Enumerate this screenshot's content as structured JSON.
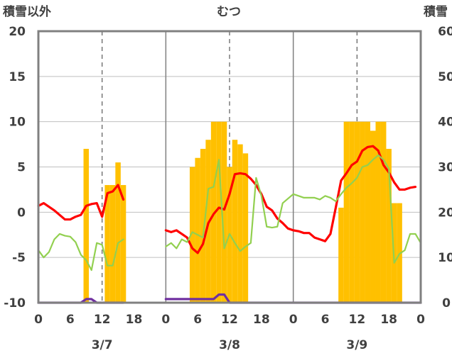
{
  "chart_data": {
    "type": "bar",
    "title": "むつ",
    "left_axis_label": "積雪以外",
    "right_axis_label": "積雪",
    "left_ylim": [
      -10,
      20
    ],
    "right_ylim": [
      0,
      60
    ],
    "left_ticks": [
      "20",
      "15",
      "10",
      "5",
      "0",
      "-5",
      "-10"
    ],
    "right_ticks": [
      "60",
      "50",
      "40",
      "30",
      "20",
      "10",
      "0"
    ],
    "x_ticks": [
      "0",
      "6",
      "12",
      "18",
      "0",
      "6",
      "12",
      "18",
      "0",
      "6",
      "12",
      "18",
      "0"
    ],
    "dates": [
      "3/7",
      "3/8",
      "3/9"
    ],
    "grid": true,
    "x_hours_total": 72,
    "snow_bars": [
      {
        "hour": 9,
        "value": 34
      },
      {
        "hour": 13,
        "value": 26
      },
      {
        "hour": 14,
        "value": 26
      },
      {
        "hour": 15,
        "value": 31
      },
      {
        "hour": 16,
        "value": 26
      },
      {
        "hour": 29,
        "value": 30
      },
      {
        "hour": 30,
        "value": 32
      },
      {
        "hour": 31,
        "value": 34
      },
      {
        "hour": 32,
        "value": 36
      },
      {
        "hour": 33,
        "value": 40
      },
      {
        "hour": 34,
        "value": 40
      },
      {
        "hour": 35,
        "value": 40
      },
      {
        "hour": 36,
        "value": 30
      },
      {
        "hour": 37,
        "value": 36
      },
      {
        "hour": 38,
        "value": 35
      },
      {
        "hour": 39,
        "value": 33
      },
      {
        "hour": 57,
        "value": 21
      },
      {
        "hour": 58,
        "value": 40
      },
      {
        "hour": 59,
        "value": 40
      },
      {
        "hour": 60,
        "value": 40
      },
      {
        "hour": 61,
        "value": 40
      },
      {
        "hour": 62,
        "value": 40
      },
      {
        "hour": 63,
        "value": 38
      },
      {
        "hour": 64,
        "value": 40
      },
      {
        "hour": 65,
        "value": 40
      },
      {
        "hour": 66,
        "value": 34
      },
      {
        "hour": 67,
        "value": 22
      },
      {
        "hour": 68,
        "value": 22
      }
    ],
    "series": [
      {
        "color": "#ff0000",
        "segments": [
          [
            [
              0,
              0.7
            ],
            [
              1,
              1.0
            ],
            [
              2,
              0.6
            ],
            [
              3,
              0.2
            ],
            [
              4,
              -0.3
            ],
            [
              5,
              -0.8
            ],
            [
              6,
              -0.8
            ],
            [
              7,
              -0.5
            ],
            [
              8,
              -0.3
            ],
            [
              9,
              0.7
            ],
            [
              10,
              0.9
            ],
            [
              11,
              1.0
            ],
            [
              12,
              -0.5
            ],
            [
              13,
              2.1
            ],
            [
              14,
              2.3
            ],
            [
              15,
              3.0
            ],
            [
              16,
              1.4
            ]
          ],
          [
            [
              24,
              -2.0
            ],
            [
              25,
              -2.2
            ],
            [
              26,
              -2.0
            ],
            [
              27,
              -2.4
            ],
            [
              28,
              -2.8
            ],
            [
              29,
              -4.0
            ],
            [
              30,
              -4.5
            ],
            [
              31,
              -3.5
            ],
            [
              32,
              -1.2
            ],
            [
              33,
              -0.2
            ],
            [
              34,
              0.5
            ],
            [
              35,
              0.3
            ],
            [
              36,
              2.0
            ],
            [
              37,
              4.2
            ],
            [
              38,
              4.3
            ],
            [
              39,
              4.2
            ],
            [
              40,
              3.7
            ],
            [
              41,
              3.0
            ],
            [
              42,
              2.0
            ],
            [
              43,
              0.6
            ],
            [
              44,
              0.2
            ],
            [
              45,
              -0.7
            ],
            [
              46,
              -1.2
            ],
            [
              47,
              -1.8
            ],
            [
              48,
              -2.0
            ],
            [
              49,
              -2.1
            ],
            [
              50,
              -2.3
            ],
            [
              51,
              -2.3
            ],
            [
              52,
              -2.8
            ],
            [
              53,
              -3.0
            ],
            [
              54,
              -3.2
            ],
            [
              55,
              -2.4
            ],
            [
              56,
              0.5
            ],
            [
              57,
              3.5
            ],
            [
              58,
              4.3
            ],
            [
              59,
              5.2
            ],
            [
              60,
              5.6
            ],
            [
              61,
              6.8
            ],
            [
              62,
              7.2
            ],
            [
              63,
              7.3
            ],
            [
              64,
              6.8
            ],
            [
              65,
              5.2
            ],
            [
              66,
              4.4
            ],
            [
              67,
              3.3
            ],
            [
              68,
              2.5
            ],
            [
              69,
              2.5
            ],
            [
              70,
              2.7
            ],
            [
              71,
              2.8
            ]
          ]
        ]
      },
      {
        "color": "#92d050",
        "segments": [
          [
            [
              0,
              -4.2
            ],
            [
              1,
              -5.0
            ],
            [
              2,
              -4.4
            ],
            [
              3,
              -3.0
            ],
            [
              4,
              -2.4
            ],
            [
              5,
              -2.6
            ],
            [
              6,
              -2.7
            ],
            [
              7,
              -3.3
            ],
            [
              8,
              -4.7
            ],
            [
              9,
              -5.3
            ],
            [
              10,
              -6.4
            ],
            [
              11,
              -3.4
            ],
            [
              12,
              -3.6
            ],
            [
              13,
              -5.9
            ],
            [
              14,
              -5.9
            ],
            [
              15,
              -3.4
            ],
            [
              16,
              -3.0
            ]
          ],
          [
            [
              24,
              -3.8
            ],
            [
              25,
              -3.4
            ],
            [
              26,
              -4.0
            ],
            [
              27,
              -3.0
            ],
            [
              28,
              -3.3
            ],
            [
              29,
              -2.2
            ],
            [
              30,
              -2.5
            ],
            [
              31,
              -2.8
            ],
            [
              32,
              2.6
            ],
            [
              33,
              2.8
            ],
            [
              34,
              5.8
            ],
            [
              35,
              -4.0
            ],
            [
              36,
              -2.4
            ],
            [
              37,
              -3.4
            ],
            [
              38,
              -4.3
            ],
            [
              39,
              -3.8
            ],
            [
              40,
              -3.4
            ],
            [
              41,
              3.8
            ],
            [
              42,
              1.8
            ],
            [
              43,
              -1.6
            ],
            [
              44,
              -1.7
            ],
            [
              45,
              -1.6
            ],
            [
              46,
              1.0
            ],
            [
              47,
              1.5
            ],
            [
              48,
              2.0
            ],
            [
              49,
              1.8
            ],
            [
              50,
              1.6
            ],
            [
              51,
              1.6
            ],
            [
              52,
              1.6
            ],
            [
              53,
              1.4
            ],
            [
              54,
              1.8
            ],
            [
              55,
              1.6
            ],
            [
              56,
              1.2
            ],
            [
              57,
              2.0
            ],
            [
              58,
              2.7
            ],
            [
              59,
              3.2
            ],
            [
              60,
              3.8
            ],
            [
              61,
              5.0
            ],
            [
              62,
              5.2
            ],
            [
              63,
              5.8
            ],
            [
              64,
              6.3
            ],
            [
              65,
              5.8
            ],
            [
              66,
              4.8
            ],
            [
              67,
              -5.6
            ],
            [
              68,
              -4.6
            ],
            [
              69,
              -4.2
            ],
            [
              70,
              -2.4
            ],
            [
              71,
              -2.4
            ],
            [
              72,
              -3.4
            ]
          ]
        ]
      },
      {
        "color": "#7030a0",
        "segments": [
          [
            [
              0,
              -10
            ],
            [
              1,
              -10
            ],
            [
              2,
              -10
            ],
            [
              3,
              -10
            ],
            [
              4,
              -10
            ],
            [
              5,
              -10
            ],
            [
              6,
              -10
            ],
            [
              7,
              -10
            ],
            [
              8,
              -10
            ],
            [
              9,
              -9.6
            ],
            [
              10,
              -9.6
            ],
            [
              11,
              -10
            ],
            [
              12,
              -10
            ],
            [
              13,
              -10
            ],
            [
              14,
              -10
            ],
            [
              15,
              -10
            ],
            [
              16,
              -10
            ]
          ],
          [
            [
              24,
              -9.6
            ],
            [
              25,
              -9.6
            ],
            [
              26,
              -9.6
            ],
            [
              27,
              -9.6
            ],
            [
              28,
              -9.6
            ],
            [
              29,
              -9.6
            ],
            [
              30,
              -9.6
            ],
            [
              31,
              -9.6
            ],
            [
              32,
              -9.6
            ],
            [
              33,
              -9.6
            ],
            [
              34,
              -9.1
            ],
            [
              35,
              -9.1
            ],
            [
              36,
              -10
            ],
            [
              37,
              -10
            ],
            [
              38,
              -10
            ],
            [
              39,
              -10
            ],
            [
              40,
              -10
            ],
            [
              41,
              -10
            ],
            [
              42,
              -10
            ],
            [
              43,
              -10
            ],
            [
              44,
              -10
            ],
            [
              45,
              -10
            ],
            [
              46,
              -10
            ],
            [
              47,
              -10
            ],
            [
              48,
              -10
            ],
            [
              49,
              -10
            ],
            [
              50,
              -10
            ],
            [
              51,
              -10
            ],
            [
              52,
              -10
            ],
            [
              53,
              -10
            ],
            [
              54,
              -10
            ],
            [
              55,
              -10
            ],
            [
              56,
              -10
            ],
            [
              57,
              -10
            ],
            [
              58,
              -10
            ],
            [
              59,
              -10
            ],
            [
              60,
              -10
            ],
            [
              61,
              -10
            ],
            [
              62,
              -10
            ],
            [
              63,
              -10
            ],
            [
              64,
              -10
            ],
            [
              65,
              -10
            ],
            [
              66,
              -10
            ],
            [
              67,
              -10
            ],
            [
              68,
              -10
            ],
            [
              69,
              -10
            ],
            [
              70,
              -10
            ],
            [
              71,
              -10
            ],
            [
              72,
              -10
            ]
          ]
        ]
      }
    ]
  }
}
